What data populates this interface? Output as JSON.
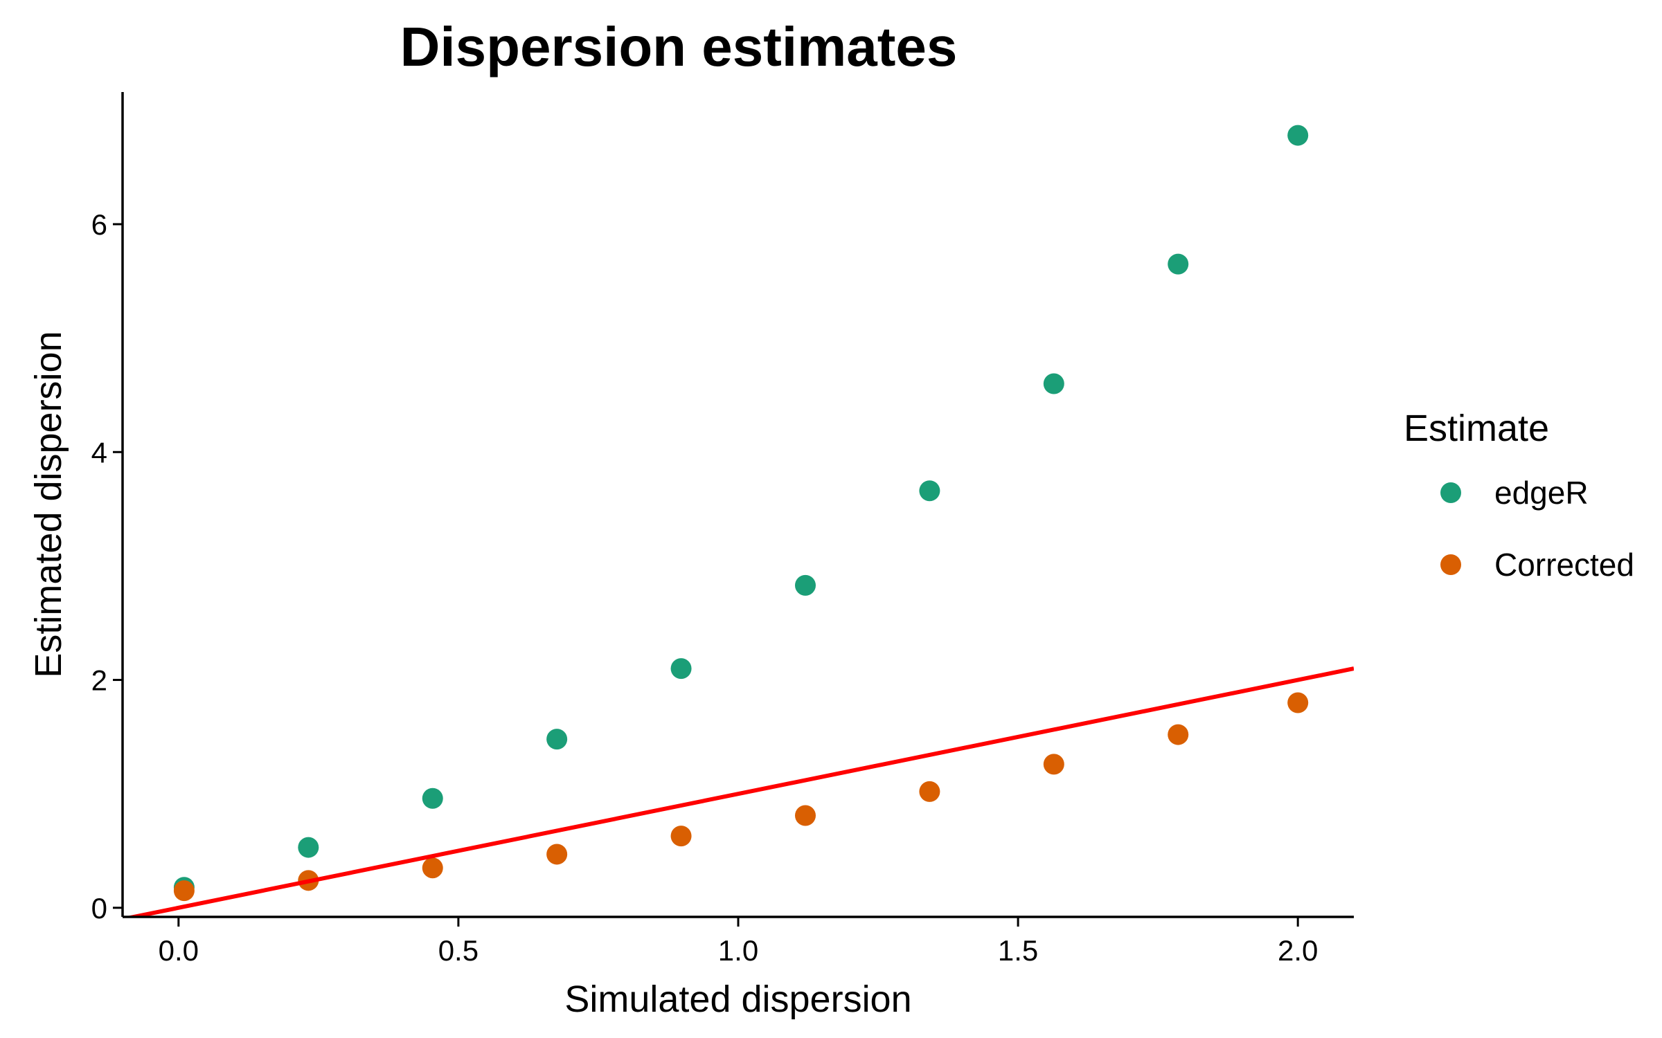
{
  "chart_data": {
    "type": "scatter",
    "title": "Dispersion estimates",
    "xlabel": "Simulated dispersion",
    "ylabel": "Estimated dispersion",
    "xlim": [
      -0.1,
      2.1
    ],
    "ylim": [
      -0.08,
      7.16
    ],
    "x_ticks": [
      0.0,
      0.5,
      1.0,
      1.5,
      2.0
    ],
    "x_tick_labels": [
      "0.0",
      "0.5",
      "1.0",
      "1.5",
      "2.0"
    ],
    "y_ticks": [
      0,
      2,
      4,
      6
    ],
    "y_tick_labels": [
      "0",
      "2",
      "4",
      "6"
    ],
    "grid": false,
    "legend": {
      "title": "Estimate",
      "placement": "right"
    },
    "x": [
      0.01,
      0.232,
      0.454,
      0.676,
      0.898,
      1.12,
      1.342,
      1.564,
      1.786,
      2.0
    ],
    "series": [
      {
        "name": "edgeR",
        "color": "#1b9e77",
        "values": [
          0.18,
          0.53,
          0.96,
          1.48,
          2.1,
          2.83,
          3.66,
          4.6,
          5.65,
          6.78
        ]
      },
      {
        "name": "Corrected",
        "color": "#d95f02",
        "values": [
          0.15,
          0.24,
          0.35,
          0.47,
          0.63,
          0.81,
          1.02,
          1.26,
          1.52,
          1.8
        ]
      }
    ],
    "reference_line": {
      "x": [
        -0.1,
        2.1
      ],
      "y": [
        -0.1,
        2.1
      ],
      "color": "#ff0000"
    }
  }
}
